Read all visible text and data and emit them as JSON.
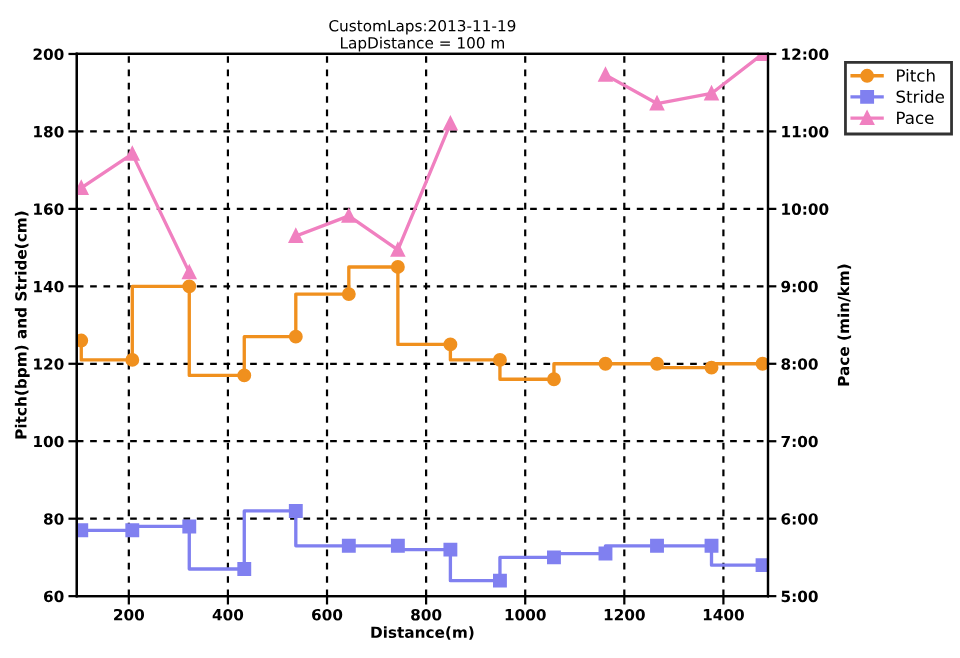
{
  "chart_data": {
    "type": "line",
    "title": "CustomLaps:2013-11-19\nLapDistance = 100 m",
    "xlabel": "Distance(m)",
    "ylabel": "Pitch(bpm) and Stride(cm)",
    "y2label": "Pace (min/km)",
    "x": [
      104,
      207,
      322,
      433,
      537,
      644,
      743,
      849,
      949,
      1058,
      1162,
      1266,
      1376,
      1479
    ],
    "series": [
      {
        "name": "Pitch",
        "type": "step",
        "marker": "circle",
        "color": "#f0901e",
        "values": [
          126,
          121,
          140,
          117,
          127,
          138,
          145,
          125,
          121,
          116,
          120,
          120,
          119,
          120
        ]
      },
      {
        "name": "Stride",
        "type": "step",
        "marker": "square",
        "color": "#8080f0",
        "values": [
          77,
          77,
          78,
          67,
          82,
          73,
          73,
          72,
          64,
          70,
          71,
          73,
          73,
          68
        ]
      },
      {
        "name": "Pace",
        "marker": "triangle",
        "axis": "y2",
        "color": "#f080c0",
        "values": [
          10.27,
          10.71,
          9.18,
          null,
          9.65,
          9.91,
          9.47,
          11.1,
          null,
          null,
          11.73,
          11.36,
          11.49,
          12.0
        ]
      }
    ],
    "xlim": [
      95,
      1490
    ],
    "xticks": [
      200,
      400,
      600,
      800,
      1000,
      1200,
      1400
    ],
    "ylim": [
      60,
      200
    ],
    "yticks": [
      60,
      80,
      100,
      120,
      140,
      160,
      180,
      200
    ],
    "y2lim": [
      5,
      12
    ],
    "y2ticks": [
      {
        "value": 5,
        "label": "5:00"
      },
      {
        "value": 6,
        "label": "6:00"
      },
      {
        "value": 7,
        "label": "7:00"
      },
      {
        "value": 8,
        "label": "8:00"
      },
      {
        "value": 9,
        "label": "9:00"
      },
      {
        "value": 10,
        "label": "10:00"
      },
      {
        "value": 11,
        "label": "11:00"
      },
      {
        "value": 12,
        "label": "12:00"
      }
    ],
    "grid": true,
    "legend": "top right",
    "line_style": "solid"
  }
}
